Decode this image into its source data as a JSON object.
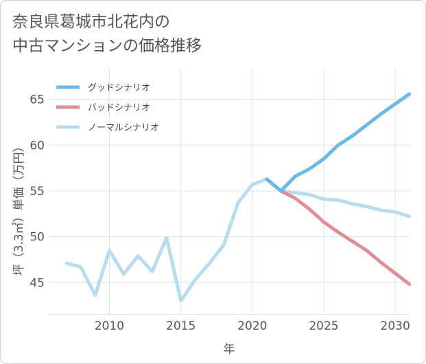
{
  "chart_data": {
    "type": "line",
    "title": [
      "奈良県葛城市北花内の",
      "中古マンションの価格推移"
    ],
    "xlabel": "年",
    "ylabel": "坪（3.3㎡）単価（万円）",
    "xlim": [
      2005.8,
      2031
    ],
    "ylim": [
      41.5,
      68.5
    ],
    "x_ticks": [
      2010,
      2015,
      2020,
      2025,
      2030
    ],
    "y_ticks": [
      45,
      50,
      55,
      60,
      65
    ],
    "series": [
      {
        "name": "グッドシナリオ",
        "color": "#6bb8e9",
        "x": [
          2021,
          2022,
          2023,
          2024,
          2025,
          2026,
          2027,
          2028,
          2029,
          2030,
          2031
        ],
        "values": [
          56.3,
          55.0,
          56.6,
          57.4,
          58.5,
          60.0,
          61.0,
          62.2,
          63.4,
          64.5,
          65.6
        ]
      },
      {
        "name": "バッドシナリオ",
        "color": "#e08e96",
        "x": [
          2021,
          2022,
          2023,
          2024,
          2025,
          2026,
          2027,
          2028,
          2029,
          2030,
          2031
        ],
        "values": [
          56.3,
          55.0,
          54.2,
          53.0,
          51.6,
          50.5,
          49.5,
          48.5,
          47.2,
          46.0,
          44.8
        ]
      },
      {
        "name": "ノーマルシナリオ",
        "color": "#b9dced",
        "x": [
          2007,
          2008,
          2009,
          2010,
          2011,
          2012,
          2013,
          2014,
          2015,
          2016,
          2017,
          2018,
          2019,
          2020,
          2021,
          2022,
          2023,
          2024,
          2025,
          2026,
          2027,
          2028,
          2029,
          2030,
          2031
        ],
        "values": [
          47.1,
          46.7,
          43.6,
          48.5,
          45.9,
          47.9,
          46.2,
          49.9,
          43.0,
          45.3,
          47.1,
          49.1,
          53.7,
          55.7,
          56.3,
          55.0,
          54.8,
          54.6,
          54.1,
          54.0,
          53.6,
          53.3,
          52.9,
          52.7,
          52.2
        ]
      }
    ],
    "legend_position": "top-left",
    "grid": true
  }
}
